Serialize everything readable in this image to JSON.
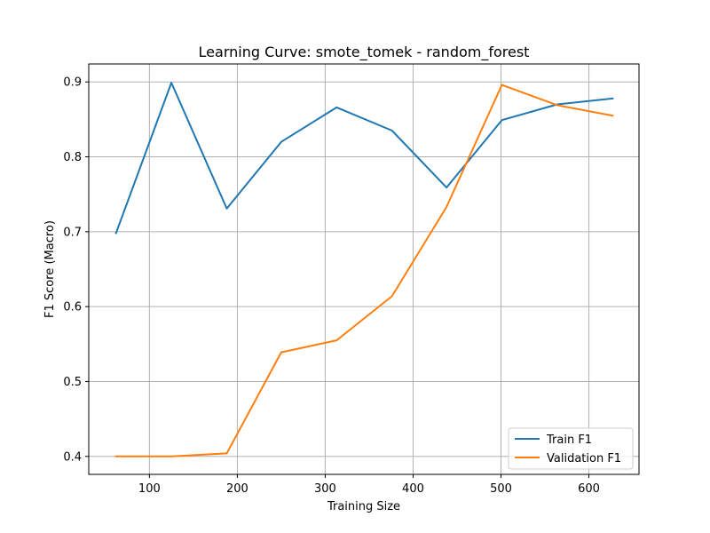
{
  "chart_data": {
    "type": "line",
    "title": "Learning Curve: smote_tomek - random_forest",
    "xlabel": "Training Size",
    "ylabel": "F1 Score (Macro)",
    "xlim": [
      31,
      657
    ],
    "ylim": [
      0.376,
      0.924
    ],
    "xticks": [
      100,
      200,
      300,
      400,
      500,
      600
    ],
    "yticks": [
      0.4,
      0.5,
      0.6,
      0.7,
      0.8,
      0.9
    ],
    "xtick_labels": [
      "100",
      "200",
      "300",
      "400",
      "500",
      "600"
    ],
    "ytick_labels": [
      "0.4",
      "0.5",
      "0.6",
      "0.7",
      "0.8",
      "0.9"
    ],
    "grid": true,
    "legend_position": "lower-right",
    "x": [
      62,
      125,
      188,
      250,
      313,
      376,
      438,
      501,
      564,
      627
    ],
    "series": [
      {
        "name": "Train F1",
        "color": "#1f77b4",
        "values": [
          0.698,
          0.899,
          0.731,
          0.82,
          0.866,
          0.835,
          0.759,
          0.849,
          0.87,
          0.878
        ]
      },
      {
        "name": "Validation F1",
        "color": "#ff7f0e",
        "values": [
          0.4,
          0.4,
          0.404,
          0.539,
          0.555,
          0.614,
          0.733,
          0.896,
          0.869,
          0.855
        ]
      }
    ]
  }
}
